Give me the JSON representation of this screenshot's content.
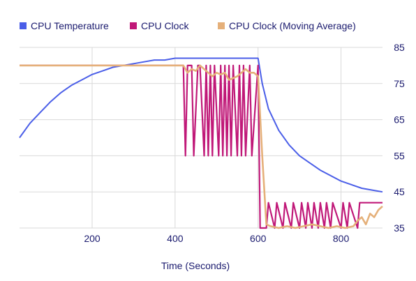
{
  "chart_data": {
    "type": "line",
    "title": "",
    "xlabel": "Time (Seconds)",
    "ylabel": "",
    "xlim": [
      25,
      900
    ],
    "ylim": [
      35,
      85
    ],
    "x_ticks": [
      200,
      400,
      600,
      800
    ],
    "y_ticks": [
      35,
      45,
      55,
      65,
      75,
      85
    ],
    "grid": true,
    "legend_position": "top",
    "series": [
      {
        "name": "CPU Temperature",
        "color": "#4a5ee8",
        "x": [
          25,
          50,
          75,
          100,
          125,
          150,
          175,
          200,
          225,
          250,
          275,
          300,
          325,
          350,
          375,
          400,
          425,
          450,
          475,
          500,
          525,
          550,
          575,
          600,
          610,
          625,
          650,
          675,
          700,
          725,
          750,
          775,
          800,
          825,
          850,
          875,
          900
        ],
        "y": [
          60,
          64,
          67,
          70,
          72.5,
          74.5,
          76,
          77.5,
          78.5,
          79.5,
          80,
          80.5,
          81,
          81.5,
          81.5,
          82,
          82,
          82,
          82,
          82,
          82,
          82,
          82,
          82,
          75,
          68,
          62,
          58,
          55,
          53,
          51,
          49.5,
          48,
          47,
          46,
          45.5,
          45
        ]
      },
      {
        "name": "CPU Clock",
        "color": "#c01878",
        "x": [
          25,
          420,
          425,
          430,
          440,
          445,
          455,
          460,
          470,
          475,
          480,
          485,
          490,
          495,
          505,
          510,
          515,
          520,
          525,
          530,
          535,
          540,
          550,
          555,
          560,
          565,
          570,
          580,
          585,
          600,
          605,
          620,
          625,
          640,
          645,
          660,
          665,
          680,
          685,
          700,
          705,
          715,
          720,
          730,
          735,
          745,
          750,
          760,
          765,
          775,
          780,
          800,
          805,
          815,
          820,
          840,
          845,
          850,
          900
        ],
        "y": [
          80,
          80,
          55,
          80,
          80,
          55,
          80,
          80,
          55,
          80,
          55,
          80,
          55,
          80,
          55,
          80,
          55,
          80,
          55,
          80,
          55,
          80,
          55,
          80,
          55,
          80,
          55,
          80,
          55,
          80,
          35,
          35,
          42,
          35,
          42,
          35,
          42,
          35,
          42,
          35,
          42,
          35,
          42,
          35,
          42,
          35,
          42,
          35,
          42,
          35,
          42,
          35,
          42,
          35,
          42,
          35,
          42,
          42,
          42
        ]
      },
      {
        "name": "CPU Clock (Moving Average)",
        "color": "#e5b07a",
        "x": [
          25,
          420,
          430,
          440,
          450,
          460,
          470,
          480,
          490,
          500,
          510,
          520,
          530,
          540,
          550,
          560,
          570,
          580,
          590,
          600,
          610,
          620,
          630,
          650,
          670,
          690,
          710,
          730,
          750,
          770,
          790,
          810,
          830,
          840,
          850,
          860,
          870,
          880,
          890,
          900
        ],
        "y": [
          80,
          80,
          78,
          79,
          78.5,
          80,
          79,
          78,
          77,
          78,
          77.5,
          78,
          76,
          76.5,
          77,
          78,
          79,
          78,
          78,
          77,
          55,
          36,
          35.5,
          35,
          35.5,
          35,
          35.5,
          36,
          35.5,
          35,
          35.5,
          35,
          35.5,
          37,
          38,
          36,
          39,
          38,
          40,
          41
        ]
      }
    ]
  }
}
